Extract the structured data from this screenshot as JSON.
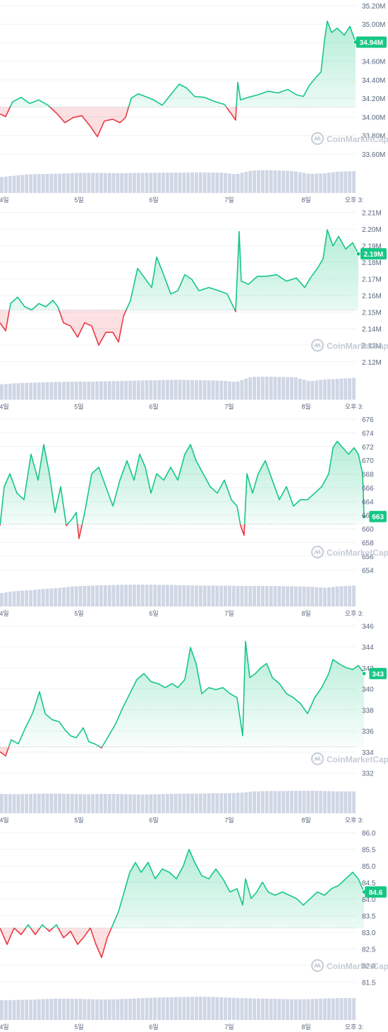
{
  "watermark": "CoinMarketCap",
  "colors": {
    "up": "#16c784",
    "down": "#ea3943",
    "volume": "#cfd6e4",
    "grid": "#eff2f5",
    "axis_text": "#58667e",
    "baseline": "#c6ccd6"
  },
  "chart_data": [
    {
      "type": "area",
      "x_labels": [
        "4일",
        "5일",
        "6일",
        "7일",
        "8일",
        "오후 3:"
      ],
      "y_ticks": [
        "35.20M",
        "35.00M",
        "34.80M",
        "34.60M",
        "34.40M",
        "34.20M",
        "34.00M",
        "33.80M",
        "33.60M"
      ],
      "ylim": [
        33.46,
        35.26
      ],
      "reference": 34.2,
      "current_label": "34.94M",
      "current": 34.94,
      "points": [
        [
          0,
          34.12
        ],
        [
          8,
          34.09
        ],
        [
          18,
          34.26
        ],
        [
          30,
          34.31
        ],
        [
          42,
          34.24
        ],
        [
          55,
          34.28
        ],
        [
          68,
          34.22
        ],
        [
          80,
          34.13
        ],
        [
          92,
          34.02
        ],
        [
          104,
          34.08
        ],
        [
          116,
          34.1
        ],
        [
          128,
          33.98
        ],
        [
          138,
          33.86
        ],
        [
          148,
          34.04
        ],
        [
          160,
          34.06
        ],
        [
          170,
          34.02
        ],
        [
          178,
          34.08
        ],
        [
          186,
          34.3
        ],
        [
          196,
          34.35
        ],
        [
          206,
          34.32
        ],
        [
          218,
          34.28
        ],
        [
          230,
          34.22
        ],
        [
          242,
          34.34
        ],
        [
          254,
          34.46
        ],
        [
          264,
          34.42
        ],
        [
          276,
          34.32
        ],
        [
          290,
          34.31
        ],
        [
          305,
          34.26
        ],
        [
          318,
          34.23
        ],
        [
          328,
          34.12
        ],
        [
          334,
          34.05
        ],
        [
          337,
          34.48
        ],
        [
          341,
          34.28
        ],
        [
          352,
          34.31
        ],
        [
          366,
          34.34
        ],
        [
          380,
          34.38
        ],
        [
          394,
          34.36
        ],
        [
          408,
          34.4
        ],
        [
          420,
          34.34
        ],
        [
          430,
          34.32
        ],
        [
          438,
          34.44
        ],
        [
          448,
          34.54
        ],
        [
          455,
          34.6
        ],
        [
          460,
          34.96
        ],
        [
          464,
          35.18
        ],
        [
          470,
          35.05
        ],
        [
          478,
          35.1
        ],
        [
          488,
          35.02
        ],
        [
          496,
          35.12
        ],
        [
          504,
          34.94
        ]
      ],
      "volume": [
        0.48,
        0.58,
        0.66,
        0.68,
        0.7,
        0.74,
        0.75,
        0.74,
        0.73,
        0.74,
        0.75,
        0.76,
        0.76,
        0.77,
        0.77,
        0.76,
        0.66,
        0.9,
        0.92,
        0.9,
        0.85,
        0.68,
        0.72,
        0.83,
        0.86
      ]
    },
    {
      "type": "area",
      "x_labels": [
        "4일",
        "5일",
        "6일",
        "7일",
        "8일",
        "오후 3:"
      ],
      "y_ticks": [
        "2.21M",
        "2.20M",
        "2.19M",
        "2.18M",
        "2.17M",
        "2.16M",
        "2.15M",
        "2.14M",
        "2.13M",
        "2.12M"
      ],
      "ylim": [
        2.1152,
        2.2136
      ],
      "reference": 2.158,
      "current_label": "2.19M",
      "current": 2.193,
      "points": [
        [
          0,
          2.15
        ],
        [
          8,
          2.145
        ],
        [
          15,
          2.162
        ],
        [
          25,
          2.166
        ],
        [
          35,
          2.16
        ],
        [
          45,
          2.158
        ],
        [
          55,
          2.162
        ],
        [
          65,
          2.16
        ],
        [
          75,
          2.164
        ],
        [
          82,
          2.16
        ],
        [
          90,
          2.15
        ],
        [
          100,
          2.148
        ],
        [
          110,
          2.141
        ],
        [
          120,
          2.15
        ],
        [
          130,
          2.148
        ],
        [
          140,
          2.136
        ],
        [
          150,
          2.144
        ],
        [
          160,
          2.144
        ],
        [
          168,
          2.138
        ],
        [
          175,
          2.154
        ],
        [
          185,
          2.164
        ],
        [
          195,
          2.184
        ],
        [
          205,
          2.178
        ],
        [
          215,
          2.172
        ],
        [
          222,
          2.191
        ],
        [
          232,
          2.18
        ],
        [
          242,
          2.168
        ],
        [
          252,
          2.17
        ],
        [
          262,
          2.18
        ],
        [
          272,
          2.177
        ],
        [
          282,
          2.17
        ],
        [
          296,
          2.172
        ],
        [
          310,
          2.17
        ],
        [
          322,
          2.168
        ],
        [
          334,
          2.157
        ],
        [
          339,
          2.207
        ],
        [
          342,
          2.176
        ],
        [
          352,
          2.174
        ],
        [
          365,
          2.179
        ],
        [
          378,
          2.179
        ],
        [
          392,
          2.18
        ],
        [
          406,
          2.176
        ],
        [
          420,
          2.178
        ],
        [
          432,
          2.172
        ],
        [
          440,
          2.178
        ],
        [
          450,
          2.184
        ],
        [
          458,
          2.19
        ],
        [
          464,
          2.208
        ],
        [
          472,
          2.198
        ],
        [
          480,
          2.204
        ],
        [
          490,
          2.196
        ],
        [
          500,
          2.2
        ],
        [
          508,
          2.193
        ]
      ],
      "volume": [
        0.45,
        0.52,
        0.55,
        0.58,
        0.6,
        0.62,
        0.62,
        0.64,
        0.66,
        0.68,
        0.7,
        0.72,
        0.74,
        0.72,
        0.7,
        0.68,
        0.6,
        0.92,
        0.94,
        0.92,
        0.9,
        0.64,
        0.76,
        0.8,
        0.86
      ]
    },
    {
      "type": "area",
      "x_labels": [
        "4일",
        "5일",
        "6일",
        "7일",
        "8일",
        "오후 3:"
      ],
      "y_ticks": [
        "676",
        "674",
        "672",
        "670",
        "668",
        "666",
        "664",
        "662",
        "660",
        "658",
        "656",
        "654"
      ],
      "ylim": [
        652.8,
        677.1
      ],
      "reference": 662.2,
      "current_label": "663",
      "current": 663.4,
      "points": [
        [
          0,
          662.0
        ],
        [
          6,
          668.0
        ],
        [
          14,
          670.0
        ],
        [
          24,
          667.0
        ],
        [
          34,
          666.0
        ],
        [
          44,
          673.0
        ],
        [
          54,
          669.0
        ],
        [
          62,
          674.5
        ],
        [
          70,
          670.0
        ],
        [
          78,
          664.0
        ],
        [
          86,
          668.0
        ],
        [
          94,
          662.0
        ],
        [
          102,
          663.0
        ],
        [
          108,
          664.0
        ],
        [
          112,
          660.0
        ],
        [
          120,
          664.0
        ],
        [
          130,
          670.0
        ],
        [
          140,
          671.0
        ],
        [
          150,
          668.0
        ],
        [
          160,
          665.0
        ],
        [
          170,
          669.0
        ],
        [
          180,
          672.0
        ],
        [
          190,
          669.0
        ],
        [
          198,
          673.0
        ],
        [
          206,
          671.0
        ],
        [
          214,
          667.0
        ],
        [
          222,
          670.0
        ],
        [
          232,
          669.0
        ],
        [
          242,
          671.0
        ],
        [
          252,
          669.0
        ],
        [
          262,
          673.0
        ],
        [
          270,
          674.5
        ],
        [
          278,
          672.0
        ],
        [
          288,
          670.0
        ],
        [
          298,
          668.0
        ],
        [
          308,
          667.0
        ],
        [
          318,
          669.0
        ],
        [
          328,
          666.0
        ],
        [
          336,
          665.0
        ],
        [
          341,
          662.0
        ],
        [
          346,
          660.5
        ],
        [
          350,
          670.0
        ],
        [
          358,
          667.0
        ],
        [
          366,
          670.0
        ],
        [
          376,
          672.0
        ],
        [
          386,
          669.0
        ],
        [
          396,
          666.0
        ],
        [
          406,
          668.0
        ],
        [
          416,
          665.0
        ],
        [
          426,
          666.0
        ],
        [
          436,
          666.0
        ],
        [
          446,
          667.0
        ],
        [
          456,
          668.0
        ],
        [
          466,
          670.0
        ],
        [
          472,
          674.0
        ],
        [
          478,
          675.0
        ],
        [
          486,
          674.0
        ],
        [
          494,
          673.0
        ],
        [
          502,
          674.0
        ],
        [
          508,
          673.0
        ],
        [
          514,
          670.0
        ],
        [
          516,
          663.4
        ]
      ],
      "volume": [
        0.32,
        0.45,
        0.5,
        0.58,
        0.64,
        0.74,
        0.78,
        0.82,
        0.84,
        0.86,
        0.86,
        0.85,
        0.84,
        0.82,
        0.8,
        0.8,
        0.79,
        0.78,
        0.78,
        0.77,
        0.76,
        0.75,
        0.72,
        0.66,
        0.76,
        0.8
      ]
    },
    {
      "type": "area",
      "x_labels": [
        "4일",
        "5일",
        "6일",
        "7일",
        "8일",
        "오후 3:"
      ],
      "y_ticks": [
        "346",
        "344",
        "342",
        "340",
        "338",
        "336",
        "334",
        "332"
      ],
      "ylim": [
        331.2,
        346.9
      ],
      "reference": 335.7,
      "current_label": "343",
      "current": 343.0,
      "points": [
        [
          0,
          335.2
        ],
        [
          8,
          334.8
        ],
        [
          16,
          336.4
        ],
        [
          26,
          336.0
        ],
        [
          36,
          337.6
        ],
        [
          46,
          339.0
        ],
        [
          56,
          341.2
        ],
        [
          64,
          339.0
        ],
        [
          74,
          338.4
        ],
        [
          84,
          338.2
        ],
        [
          92,
          337.4
        ],
        [
          100,
          336.8
        ],
        [
          108,
          336.6
        ],
        [
          118,
          337.6
        ],
        [
          126,
          336.2
        ],
        [
          134,
          336.0
        ],
        [
          144,
          335.6
        ],
        [
          154,
          336.8
        ],
        [
          164,
          338.0
        ],
        [
          174,
          339.6
        ],
        [
          184,
          341.0
        ],
        [
          194,
          342.4
        ],
        [
          204,
          343.0
        ],
        [
          214,
          342.2
        ],
        [
          224,
          342.0
        ],
        [
          234,
          341.6
        ],
        [
          244,
          342.0
        ],
        [
          252,
          341.6
        ],
        [
          262,
          342.4
        ],
        [
          270,
          345.6
        ],
        [
          278,
          344.0
        ],
        [
          286,
          341.0
        ],
        [
          296,
          341.6
        ],
        [
          306,
          341.4
        ],
        [
          316,
          341.6
        ],
        [
          326,
          341.0
        ],
        [
          336,
          340.6
        ],
        [
          344,
          336.8
        ],
        [
          348,
          346.2
        ],
        [
          354,
          342.6
        ],
        [
          362,
          343.0
        ],
        [
          370,
          343.6
        ],
        [
          378,
          344.0
        ],
        [
          386,
          342.6
        ],
        [
          396,
          342.0
        ],
        [
          406,
          341.0
        ],
        [
          416,
          340.6
        ],
        [
          426,
          340.0
        ],
        [
          436,
          339.0
        ],
        [
          446,
          340.6
        ],
        [
          456,
          341.6
        ],
        [
          466,
          343.0
        ],
        [
          472,
          344.4
        ],
        [
          480,
          344.0
        ],
        [
          490,
          343.6
        ],
        [
          500,
          343.4
        ],
        [
          508,
          343.8
        ],
        [
          516,
          343.0
        ]
      ],
      "volume": [
        0.7,
        0.68,
        0.7,
        0.72,
        0.72,
        0.7,
        0.68,
        0.7,
        0.7,
        0.68,
        0.66,
        0.68,
        0.7,
        0.72,
        0.72,
        0.74,
        0.74,
        0.78,
        0.86,
        0.88,
        0.88,
        0.9,
        0.9,
        0.88,
        0.86,
        0.86
      ]
    },
    {
      "type": "area",
      "x_labels": [
        "4일",
        "5일",
        "6일",
        "7일",
        "8일",
        "오후 3:"
      ],
      "y_ticks": [
        "86.0",
        "85.5",
        "85.0",
        "84.5",
        "84.0",
        "83.5",
        "83.0",
        "82.5",
        "82.0",
        "81.5"
      ],
      "ylim": [
        81.34,
        86.15
      ],
      "reference": 83.5,
      "current_label": "84.6",
      "current": 84.6,
      "points": [
        [
          0,
          83.5
        ],
        [
          10,
          83.0
        ],
        [
          20,
          83.5
        ],
        [
          30,
          83.3
        ],
        [
          40,
          83.6
        ],
        [
          50,
          83.3
        ],
        [
          60,
          83.6
        ],
        [
          70,
          83.4
        ],
        [
          80,
          83.6
        ],
        [
          90,
          83.2
        ],
        [
          100,
          83.4
        ],
        [
          110,
          83.0
        ],
        [
          118,
          83.2
        ],
        [
          128,
          83.5
        ],
        [
          136,
          83.0
        ],
        [
          144,
          82.6
        ],
        [
          152,
          83.2
        ],
        [
          160,
          83.6
        ],
        [
          168,
          84.0
        ],
        [
          176,
          84.6
        ],
        [
          184,
          85.2
        ],
        [
          192,
          85.5
        ],
        [
          200,
          85.2
        ],
        [
          210,
          85.5
        ],
        [
          220,
          85.0
        ],
        [
          230,
          85.3
        ],
        [
          240,
          85.2
        ],
        [
          250,
          85.0
        ],
        [
          260,
          85.4
        ],
        [
          268,
          85.9
        ],
        [
          276,
          85.5
        ],
        [
          286,
          85.1
        ],
        [
          296,
          85.0
        ],
        [
          306,
          85.3
        ],
        [
          316,
          85.0
        ],
        [
          326,
          84.6
        ],
        [
          336,
          84.7
        ],
        [
          344,
          84.2
        ],
        [
          348,
          85.0
        ],
        [
          356,
          84.4
        ],
        [
          364,
          84.6
        ],
        [
          372,
          84.9
        ],
        [
          380,
          84.6
        ],
        [
          390,
          84.5
        ],
        [
          400,
          84.6
        ],
        [
          410,
          84.5
        ],
        [
          420,
          84.4
        ],
        [
          430,
          84.2
        ],
        [
          440,
          84.4
        ],
        [
          450,
          84.6
        ],
        [
          460,
          84.5
        ],
        [
          470,
          84.7
        ],
        [
          480,
          84.8
        ],
        [
          490,
          85.0
        ],
        [
          500,
          85.2
        ],
        [
          508,
          85.0
        ],
        [
          516,
          84.6
        ]
      ],
      "volume": [
        0.72,
        0.74,
        0.76,
        0.8,
        0.82,
        0.82,
        0.8,
        0.78,
        0.78,
        0.82,
        0.86,
        0.9,
        0.92,
        0.94,
        0.95,
        0.94,
        0.9,
        0.86,
        0.84,
        0.82,
        0.8,
        0.78,
        0.8,
        0.84,
        0.86,
        0.86
      ]
    }
  ]
}
